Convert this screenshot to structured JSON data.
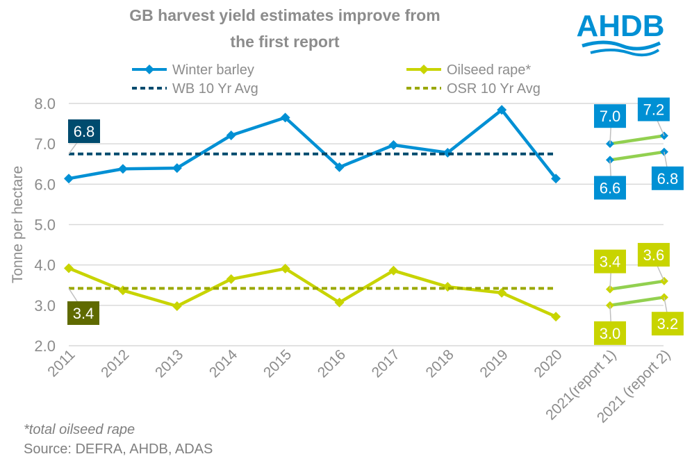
{
  "chart_data": {
    "type": "line",
    "title": "GB harvest yield estimates improve from the first report",
    "ylabel": "Tonne per hectare",
    "xlabel": "",
    "ylim": [
      2.0,
      8.0
    ],
    "yticks": [
      "2.0",
      "3.0",
      "4.0",
      "5.0",
      "6.0",
      "7.0",
      "8.0"
    ],
    "categories": [
      "2011",
      "2012",
      "2013",
      "2014",
      "2015",
      "2016",
      "2017",
      "2018",
      "2019",
      "2020",
      "2021(report 1)",
      "2021 (report 2)"
    ],
    "grid": true,
    "legend_placement": "top",
    "series": [
      {
        "name": "Winter barley",
        "color": "#0090d4",
        "style": "solid-diamond",
        "values": [
          6.14,
          6.38,
          6.4,
          7.21,
          7.65,
          6.42,
          6.97,
          6.78,
          7.84,
          6.14,
          null,
          null
        ]
      },
      {
        "name": "Oilseed rape*",
        "color": "#c8d400",
        "style": "solid-diamond",
        "values": [
          3.92,
          3.37,
          2.98,
          3.65,
          3.91,
          3.07,
          3.86,
          3.46,
          3.31,
          2.72,
          null,
          null
        ]
      },
      {
        "name": "WB 10 Yr Avg",
        "color": "#004b6e",
        "style": "dashed",
        "values": [
          6.75,
          6.75,
          6.75,
          6.75,
          6.75,
          6.75,
          6.75,
          6.75,
          6.75,
          6.75,
          null,
          null
        ],
        "label": "6.8"
      },
      {
        "name": "OSR 10 Yr Avg",
        "color": "#9aa800",
        "style": "dashed",
        "values": [
          3.42,
          3.42,
          3.42,
          3.42,
          3.42,
          3.42,
          3.42,
          3.42,
          3.42,
          3.42,
          null,
          null
        ],
        "label": "3.4"
      }
    ],
    "report_2021": {
      "connector_color": "#92d050",
      "pairs": [
        {
          "series": "Winter barley",
          "color": "#0090d4",
          "r1": 7.0,
          "r2": 7.2,
          "r1_label": "7.0",
          "r2_label": "7.2",
          "label_pos": "above"
        },
        {
          "series": "Winter barley",
          "color": "#0090d4",
          "r1": 6.6,
          "r2": 6.8,
          "r1_label": "6.6",
          "r2_label": "6.8",
          "label_pos": "below"
        },
        {
          "series": "Oilseed rape*",
          "color": "#c8d400",
          "r1": 3.4,
          "r2": 3.6,
          "r1_label": "3.4",
          "r2_label": "3.6",
          "label_pos": "above"
        },
        {
          "series": "Oilseed rape*",
          "color": "#c8d400",
          "r1": 3.0,
          "r2": 3.2,
          "r1_label": "3.0",
          "r2_label": "3.2",
          "label_pos": "below"
        }
      ]
    },
    "avg_label_colors": {
      "wb": "#004b6e",
      "osr": "#5f6a00"
    }
  },
  "footnote": "*total oilseed rape",
  "source": "Source: DEFRA, AHDB, ADAS",
  "logo": {
    "text": "AHDB",
    "color": "#0090d4"
  }
}
